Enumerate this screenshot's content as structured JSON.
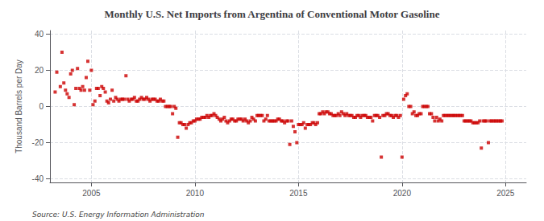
{
  "chart_data": {
    "type": "scatter",
    "title": "Monthly U.S. Net Imports from Argentina of Conventional Motor Gasoline",
    "ylabel": "Thousand Barrels per Day",
    "annotations": [
      "Source: U.S. Energy Information Administration"
    ],
    "color": "#cc0000",
    "marker": "square",
    "grid": true,
    "xlim": [
      2003.0,
      2026.0
    ],
    "ylim": [
      -42,
      42
    ],
    "xticks": [
      2005,
      2010,
      2015,
      2020,
      2025
    ],
    "yticks": [
      -40,
      -20,
      0,
      20,
      40
    ],
    "x": [
      2003.25,
      2003.33,
      2003.5,
      2003.58,
      2003.67,
      2003.75,
      2003.83,
      2003.92,
      2004.0,
      2004.08,
      2004.17,
      2004.25,
      2004.33,
      2004.42,
      2004.5,
      2004.58,
      2004.67,
      2004.75,
      2004.83,
      2004.92,
      2005.0,
      2005.08,
      2005.17,
      2005.25,
      2005.33,
      2005.42,
      2005.5,
      2005.58,
      2005.67,
      2005.75,
      2005.83,
      2005.92,
      2006.0,
      2006.08,
      2006.17,
      2006.25,
      2006.33,
      2006.42,
      2006.5,
      2006.58,
      2006.67,
      2006.75,
      2006.83,
      2006.92,
      2007.0,
      2007.08,
      2007.17,
      2007.25,
      2007.33,
      2007.42,
      2007.5,
      2007.58,
      2007.67,
      2007.75,
      2007.83,
      2007.92,
      2008.0,
      2008.08,
      2008.17,
      2008.25,
      2008.33,
      2008.42,
      2008.5,
      2008.58,
      2008.67,
      2008.75,
      2008.83,
      2008.92,
      2009.0,
      2009.08,
      2009.17,
      2009.25,
      2009.33,
      2009.42,
      2009.5,
      2009.58,
      2009.67,
      2009.75,
      2009.83,
      2009.92,
      2010.0,
      2010.08,
      2010.17,
      2010.25,
      2010.33,
      2010.42,
      2010.5,
      2010.58,
      2010.67,
      2010.75,
      2010.83,
      2010.92,
      2011.0,
      2011.08,
      2011.17,
      2011.25,
      2011.33,
      2011.42,
      2011.5,
      2011.58,
      2011.67,
      2011.75,
      2011.83,
      2011.92,
      2012.0,
      2012.08,
      2012.17,
      2012.25,
      2012.33,
      2012.42,
      2012.5,
      2012.58,
      2012.67,
      2012.75,
      2012.83,
      2012.92,
      2013.0,
      2013.08,
      2013.17,
      2013.25,
      2013.33,
      2013.42,
      2013.5,
      2013.58,
      2013.67,
      2013.75,
      2013.83,
      2013.92,
      2014.0,
      2014.08,
      2014.17,
      2014.25,
      2014.33,
      2014.42,
      2014.5,
      2014.58,
      2014.67,
      2014.75,
      2014.83,
      2014.92,
      2015.0,
      2015.08,
      2015.17,
      2015.25,
      2015.33,
      2015.42,
      2015.5,
      2015.58,
      2015.67,
      2015.75,
      2015.83,
      2015.92,
      2016.0,
      2016.08,
      2016.17,
      2016.25,
      2016.33,
      2016.42,
      2016.5,
      2016.58,
      2016.67,
      2016.75,
      2016.83,
      2016.92,
      2017.0,
      2017.08,
      2017.17,
      2017.25,
      2017.33,
      2017.42,
      2017.5,
      2017.58,
      2017.67,
      2017.75,
      2017.83,
      2017.92,
      2018.0,
      2018.08,
      2018.17,
      2018.25,
      2018.33,
      2018.42,
      2018.5,
      2018.58,
      2018.67,
      2018.75,
      2018.83,
      2018.92,
      2019.0,
      2019.08,
      2019.17,
      2019.25,
      2019.33,
      2019.42,
      2019.5,
      2019.58,
      2019.67,
      2019.75,
      2019.83,
      2019.92,
      2020.0,
      2020.08,
      2020.17,
      2020.25,
      2020.33,
      2020.42,
      2020.5,
      2020.58,
      2020.67,
      2020.75,
      2020.83,
      2020.92,
      2021.0,
      2021.08,
      2021.17,
      2021.25,
      2021.33,
      2021.42,
      2021.5,
      2021.58,
      2021.67,
      2021.75,
      2021.83,
      2021.92,
      2022.0,
      2022.08,
      2022.17,
      2022.25,
      2022.33,
      2022.42,
      2022.5,
      2022.58,
      2022.67,
      2022.75,
      2022.83,
      2022.92,
      2023.0,
      2023.08,
      2023.17,
      2023.25,
      2023.33,
      2023.42,
      2023.5,
      2023.58,
      2023.67,
      2023.75,
      2023.83,
      2023.92,
      2024.0,
      2024.08,
      2024.17,
      2024.25,
      2024.33,
      2024.42,
      2024.5,
      2024.58,
      2024.67,
      2024.75,
      2024.83
    ],
    "values": [
      8,
      19,
      11,
      30,
      13,
      9,
      7,
      5,
      18,
      20,
      1,
      10,
      21,
      10,
      9,
      11,
      9,
      16,
      25,
      9,
      20,
      1,
      3,
      10,
      10,
      6,
      11,
      10,
      8,
      3,
      2,
      4,
      9,
      3,
      5,
      4,
      3,
      4,
      4,
      4,
      17,
      4,
      3,
      4,
      4,
      5,
      3,
      3,
      4,
      5,
      4,
      4,
      5,
      4,
      3,
      4,
      4,
      4,
      3,
      3,
      4,
      3,
      3,
      0,
      0,
      0,
      0,
      -4,
      0,
      -1,
      -17,
      -9,
      -9,
      -10,
      -10,
      -12,
      -10,
      -9,
      -9,
      -8,
      -8,
      -7,
      -7,
      -7,
      -6,
      -6,
      -6,
      -5,
      -6,
      -5,
      -5,
      -4,
      -5,
      -6,
      -7,
      -8,
      -7,
      -6,
      -8,
      -9,
      -8,
      -7,
      -7,
      -8,
      -8,
      -7,
      -7,
      -7,
      -8,
      -7,
      -8,
      -9,
      -8,
      -6,
      -7,
      -8,
      -5,
      -5,
      -5,
      -5,
      -8,
      -7,
      -5,
      -8,
      -8,
      -8,
      -8,
      -8,
      -7,
      -7,
      -8,
      -8,
      -9,
      -8,
      -8,
      -21,
      -8,
      -11,
      -14,
      -20,
      -10,
      -10,
      -10,
      -9,
      -12,
      -10,
      -10,
      -10,
      -9,
      -9,
      -10,
      -9,
      -4,
      -4,
      -3,
      -4,
      -3,
      -3,
      -4,
      -4,
      -5,
      -5,
      -5,
      -4,
      -5,
      -3,
      -4,
      -5,
      -4,
      -5,
      -5,
      -5,
      -6,
      -6,
      -5,
      -5,
      -6,
      -5,
      -5,
      -5,
      -6,
      -6,
      -6,
      -8,
      -5,
      -5,
      -5,
      -6,
      -28,
      -5,
      -5,
      -4,
      -4,
      -5,
      -5,
      -6,
      -5,
      -5,
      -6,
      -5,
      -28,
      4,
      6,
      7,
      0,
      0,
      -4,
      -3,
      -5,
      -5,
      -4,
      -4,
      0,
      0,
      0,
      0,
      -4,
      -4,
      -6,
      -8,
      -6,
      -8,
      -7,
      -8,
      -5,
      -5,
      -5,
      -5,
      -5,
      -5,
      -5,
      -5,
      -5,
      -5,
      -5,
      -5,
      -8,
      -8,
      -8,
      -8,
      -8,
      -9,
      -9,
      -9,
      -9,
      -8,
      -23,
      -8,
      -8,
      -8,
      -20,
      -8,
      -8,
      -8,
      -8,
      -8,
      -8,
      -8,
      -8
    ]
  }
}
